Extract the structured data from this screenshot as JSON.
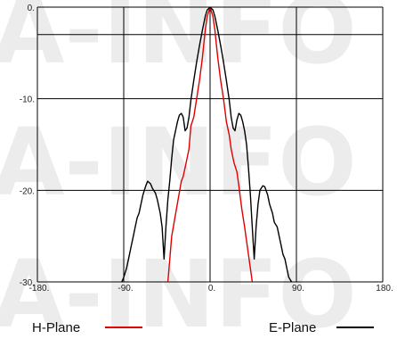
{
  "watermark": "A-INFO",
  "chart_data": {
    "type": "line",
    "title": "",
    "xlabel": "",
    "ylabel": "",
    "xlim": [
      -180,
      180
    ],
    "ylim": [
      -30,
      0
    ],
    "x_ticks": [
      -180,
      -90,
      0,
      90,
      180
    ],
    "x_tick_labels": [
      "-180.",
      "-90.",
      "0.",
      "90.",
      "180."
    ],
    "y_ticks": [
      0,
      -10,
      -20,
      -30
    ],
    "y_tick_labels": [
      "0.",
      "-10.",
      "-20.",
      "-30."
    ],
    "grid": true,
    "extra_hline": -3,
    "legend_position": "bottom",
    "series": [
      {
        "name": "H-Plane",
        "color": "#e00000",
        "x": [
          -44,
          -40,
          -35,
          -30,
          -28,
          -25,
          -22,
          -20,
          -17,
          -14,
          -11,
          -8,
          -5,
          -3,
          0,
          3,
          5,
          8,
          11,
          14,
          17,
          20,
          22,
          25,
          28,
          30,
          33,
          36,
          40,
          44
        ],
        "y": [
          -30,
          -25,
          -22,
          -19,
          -18.5,
          -17,
          -15.5,
          -13,
          -12,
          -10,
          -8,
          -5.5,
          -2.5,
          -1,
          0,
          -1,
          -2.5,
          -5.5,
          -8,
          -10,
          -12.5,
          -14,
          -15.5,
          -17,
          -18,
          -19.5,
          -22,
          -24,
          -27,
          -30
        ]
      },
      {
        "name": "E-Plane",
        "color": "#000000",
        "x": [
          -92,
          -90,
          -87,
          -85,
          -82,
          -80,
          -78,
          -76,
          -74,
          -72,
          -70,
          -67,
          -65,
          -62,
          -60,
          -57,
          -55,
          -52,
          -50,
          -48,
          -46,
          -44,
          -42,
          -40,
          -38,
          -36,
          -34,
          -32,
          -30,
          -28,
          -26,
          -24,
          -22,
          -20,
          -17,
          -14,
          -11,
          -8,
          -5,
          -3,
          0,
          3,
          5,
          8,
          11,
          14,
          17,
          20,
          22,
          24,
          26,
          28,
          30,
          32,
          34,
          36,
          38,
          40,
          42,
          44,
          46,
          48,
          50,
          52,
          55,
          57,
          60,
          62,
          65,
          67,
          70,
          72,
          74,
          76,
          78,
          80,
          82,
          85,
          87,
          90,
          92
        ],
        "y": [
          -30,
          -29.5,
          -28.5,
          -27.5,
          -26,
          -25,
          -24,
          -23,
          -22.5,
          -21.5,
          -20.5,
          -19.5,
          -19,
          -19.3,
          -19.8,
          -20.3,
          -21,
          -22.5,
          -24,
          -27.5,
          -24,
          -21,
          -19,
          -16.5,
          -14.5,
          -13.5,
          -12.5,
          -11.8,
          -11.6,
          -12,
          -13.5,
          -13.2,
          -12,
          -10.2,
          -8,
          -6,
          -4.2,
          -2.5,
          -1,
          -0.3,
          0,
          -0.3,
          -1,
          -2.5,
          -4.2,
          -6,
          -8,
          -10.2,
          -12,
          -13.2,
          -13.5,
          -12.3,
          -11.6,
          -11.8,
          -12.5,
          -13.5,
          -15,
          -17.5,
          -20.5,
          -24,
          -27.5,
          -24,
          -21.5,
          -20,
          -19.5,
          -19.6,
          -20.5,
          -21.5,
          -22.5,
          -23.5,
          -24,
          -25,
          -26,
          -27,
          -27.5,
          -28.5,
          -29.5,
          -30,
          -30.5,
          -31,
          -31.5
        ]
      }
    ]
  }
}
